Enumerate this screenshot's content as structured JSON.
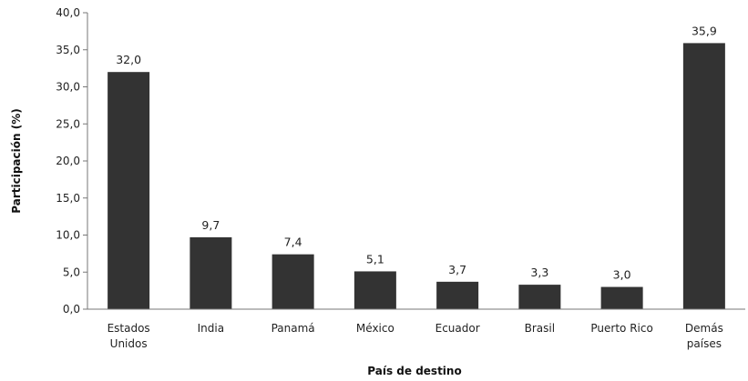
{
  "chart_data": {
    "type": "bar",
    "categories": [
      [
        "Estados",
        "Unidos"
      ],
      [
        "India"
      ],
      [
        "Panamá"
      ],
      [
        "México"
      ],
      [
        "Ecuador"
      ],
      [
        "Brasil"
      ],
      [
        "Puerto Rico"
      ],
      [
        "Demás",
        "países"
      ]
    ],
    "values": [
      32.0,
      9.7,
      7.4,
      5.1,
      3.7,
      3.3,
      3.0,
      35.9
    ],
    "value_labels": [
      "32,0",
      "9,7",
      "7,4",
      "5,1",
      "3,7",
      "3,3",
      "3,0",
      "35,9"
    ],
    "xlabel": "País de destino",
    "ylabel": "Participación (%)",
    "ylim": [
      0,
      40
    ],
    "yticks": [
      "0,0",
      "5,0",
      "10,0",
      "15,0",
      "20,0",
      "25,0",
      "30,0",
      "35,0",
      "40,0"
    ],
    "grid": false,
    "bar_color": "#333333"
  }
}
